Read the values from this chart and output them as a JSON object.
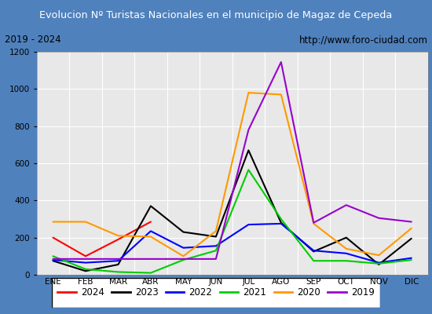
{
  "title": "Evolucion Nº Turistas Nacionales en el municipio de Magaz de Cepeda",
  "subtitle_left": "2019 - 2024",
  "subtitle_right": "http://www.foro-ciudad.com",
  "title_bg": "#4f81bd",
  "title_color": "white",
  "months": [
    "ENE",
    "FEB",
    "MAR",
    "ABR",
    "MAY",
    "JUN",
    "JUL",
    "AGO",
    "SEP",
    "OCT",
    "NOV",
    "DIC"
  ],
  "ylim": [
    0,
    1200
  ],
  "yticks": [
    0,
    200,
    400,
    600,
    800,
    1000,
    1200
  ],
  "series": {
    "2024": {
      "color": "#ff0000",
      "values": [
        200,
        100,
        190,
        285,
        null,
        null,
        null,
        null,
        null,
        null,
        null,
        null
      ]
    },
    "2023": {
      "color": "#000000",
      "values": [
        75,
        20,
        55,
        370,
        230,
        205,
        670,
        280,
        125,
        200,
        55,
        195
      ]
    },
    "2022": {
      "color": "#0000ff",
      "values": [
        80,
        65,
        75,
        235,
        145,
        155,
        270,
        275,
        130,
        115,
        65,
        90
      ]
    },
    "2021": {
      "color": "#00cc00",
      "values": [
        100,
        30,
        15,
        10,
        80,
        130,
        565,
        300,
        75,
        75,
        60,
        80
      ]
    },
    "2020": {
      "color": "#ff9900",
      "values": [
        285,
        285,
        210,
        205,
        100,
        235,
        980,
        970,
        275,
        140,
        105,
        250
      ]
    },
    "2019": {
      "color": "#9900cc",
      "values": [
        85,
        85,
        85,
        85,
        85,
        85,
        780,
        1145,
        280,
        375,
        305,
        285
      ]
    }
  },
  "legend_order": [
    "2024",
    "2023",
    "2022",
    "2021",
    "2020",
    "2019"
  ],
  "plot_bg": "#e8e8e8",
  "subtitle_bg": "#d0d0d0",
  "grid_color": "white"
}
